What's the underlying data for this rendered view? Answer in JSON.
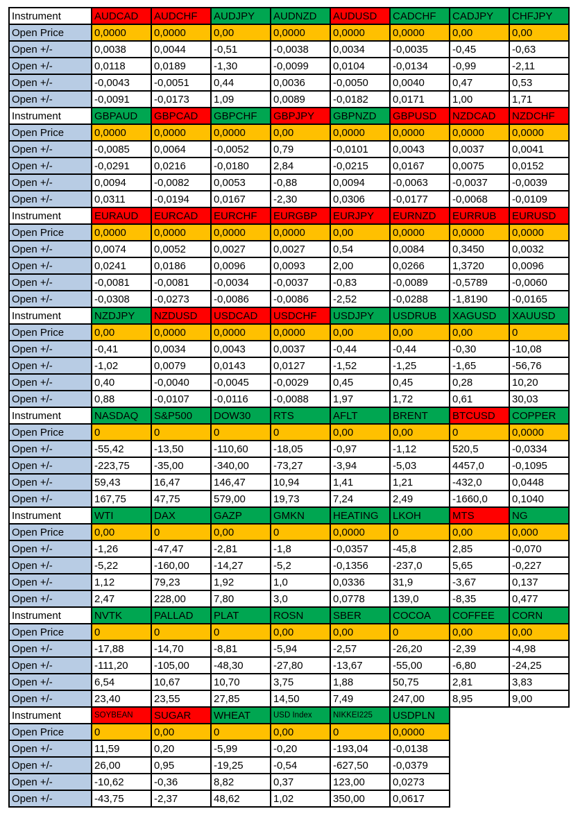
{
  "sheet": {
    "row_labels": {
      "instrument": "Instrument",
      "open_price": "Open Price",
      "open_delta": "Open +/-"
    },
    "colors": {
      "header_red": "#FF0000",
      "header_green": "#00A651",
      "price_orange": "#FFC000",
      "label_blue": "#B8CCE4",
      "grid_black": "#000000"
    },
    "blocks": [
      {
        "instruments": [
          {
            "name": "AUDCAD",
            "bg": "red"
          },
          {
            "name": "AUDCHF",
            "bg": "red"
          },
          {
            "name": "AUDJPY",
            "bg": "green"
          },
          {
            "name": "AUDNZD",
            "bg": "green"
          },
          {
            "name": "AUDUSD",
            "bg": "red"
          },
          {
            "name": "CADCHF",
            "bg": "green"
          },
          {
            "name": "CADJPY",
            "bg": "green"
          },
          {
            "name": "CHFJPY",
            "bg": "green"
          }
        ],
        "open_price": [
          "0,0000",
          "0,0000",
          "0,00",
          "0,0000",
          "0,0000",
          "0,0000",
          "0,00",
          "0,00"
        ],
        "deltas": [
          [
            "0,0038",
            "0,0044",
            "-0,51",
            "-0,0038",
            "0,0034",
            "-0,0035",
            "-0,45",
            "-0,63"
          ],
          [
            "0,0118",
            "0,0189",
            "-1,30",
            "-0,0099",
            "0,0104",
            "-0,0134",
            "-0,99",
            "-2,11"
          ],
          [
            "-0,0043",
            "-0,0051",
            "0,44",
            "0,0036",
            "-0,0050",
            "0,0040",
            "0,47",
            "0,53"
          ],
          [
            "-0,0091",
            "-0,0173",
            "1,09",
            "0,0089",
            "-0,0182",
            "0,0171",
            "1,00",
            "1,71"
          ]
        ]
      },
      {
        "instruments": [
          {
            "name": "GBPAUD",
            "bg": "green"
          },
          {
            "name": "GBPCAD",
            "bg": "red"
          },
          {
            "name": "GBPCHF",
            "bg": "green"
          },
          {
            "name": "GBPJPY",
            "bg": "red"
          },
          {
            "name": "GBPNZD",
            "bg": "green"
          },
          {
            "name": "GBPUSD",
            "bg": "red"
          },
          {
            "name": "NZDCAD",
            "bg": "red"
          },
          {
            "name": "NZDCHF",
            "bg": "red"
          }
        ],
        "open_price": [
          "0,0000",
          "0,0000",
          "0,0000",
          "0,00",
          "0,0000",
          "0,0000",
          "0,0000",
          "0,0000"
        ],
        "deltas": [
          [
            "-0,0085",
            "0,0064",
            "-0,0052",
            "0,79",
            "-0,0101",
            "0,0043",
            "0,0037",
            "0,0041"
          ],
          [
            "-0,0291",
            "0,0216",
            "-0,0180",
            "2,84",
            "-0,0215",
            "0,0167",
            "0,0075",
            "0,0152"
          ],
          [
            "0,0094",
            "-0,0082",
            "0,0053",
            "-0,88",
            "0,0094",
            "-0,0063",
            "-0,0037",
            "-0,0039"
          ],
          [
            "0,0311",
            "-0,0194",
            "0,0167",
            "-2,30",
            "0,0306",
            "-0,0177",
            "-0,0068",
            "-0,0109"
          ]
        ]
      },
      {
        "instruments": [
          {
            "name": "EURAUD",
            "bg": "red"
          },
          {
            "name": "EURCAD",
            "bg": "red"
          },
          {
            "name": "EURCHF",
            "bg": "red"
          },
          {
            "name": "EURGBP",
            "bg": "red"
          },
          {
            "name": "EURJPY",
            "bg": "red"
          },
          {
            "name": "EURNZD",
            "bg": "red"
          },
          {
            "name": "EURRUB",
            "bg": "red"
          },
          {
            "name": "EURUSD",
            "bg": "red"
          }
        ],
        "open_price": [
          "0,0000",
          "0,0000",
          "0,0000",
          "0,0000",
          "0,00",
          "0,0000",
          "0,0000",
          "0,0000"
        ],
        "deltas": [
          [
            "0,0074",
            "0,0052",
            "0,0027",
            "0,0027",
            "0,54",
            "0,0084",
            "0,3450",
            "0,0032"
          ],
          [
            "0,0241",
            "0,0186",
            "0,0096",
            "0,0093",
            "2,00",
            "0,0266",
            "1,3720",
            "0,0096"
          ],
          [
            "-0,0081",
            "-0,0081",
            "-0,0034",
            "-0,0037",
            "-0,83",
            "-0,0089",
            "-0,5789",
            "-0,0060"
          ],
          [
            "-0,0308",
            "-0,0273",
            "-0,0086",
            "-0,0086",
            "-2,52",
            "-0,0288",
            "-1,8190",
            "-0,0165"
          ]
        ]
      },
      {
        "instruments": [
          {
            "name": "NZDJPY",
            "bg": "green"
          },
          {
            "name": "NZDUSD",
            "bg": "red"
          },
          {
            "name": "USDCAD",
            "bg": "red"
          },
          {
            "name": "USDCHF",
            "bg": "red"
          },
          {
            "name": "USDJPY",
            "bg": "green"
          },
          {
            "name": "USDRUB",
            "bg": "green"
          },
          {
            "name": "XAGUSD",
            "bg": "green"
          },
          {
            "name": "XAUUSD",
            "bg": "green"
          }
        ],
        "open_price": [
          "0,00",
          "0,0000",
          "0,0000",
          "0,0000",
          "0,00",
          "0,00",
          "0,00",
          "0"
        ],
        "deltas": [
          [
            "-0,41",
            "0,0034",
            "0,0043",
            "0,0037",
            "-0,44",
            "-0,44",
            "-0,30",
            "-10,08"
          ],
          [
            "-1,02",
            "0,0079",
            "0,0143",
            "0,0127",
            "-1,52",
            "-1,25",
            "-1,65",
            "-56,76"
          ],
          [
            "0,40",
            "-0,0040",
            "-0,0045",
            "-0,0029",
            "0,45",
            "0,45",
            "0,28",
            "10,20"
          ],
          [
            "0,88",
            "-0,0107",
            "-0,0116",
            "-0,0088",
            "1,97",
            "1,72",
            "0,61",
            "30,03"
          ]
        ]
      },
      {
        "instruments": [
          {
            "name": "NASDAQ",
            "bg": "green"
          },
          {
            "name": "S&P500",
            "bg": "green"
          },
          {
            "name": "DOW30",
            "bg": "green"
          },
          {
            "name": "RTS",
            "bg": "green"
          },
          {
            "name": "AFLT",
            "bg": "green"
          },
          {
            "name": "BRENT",
            "bg": "green"
          },
          {
            "name": "BTCUSD",
            "bg": "red"
          },
          {
            "name": "COPPER",
            "bg": "green"
          }
        ],
        "open_price": [
          "0",
          "0",
          "0",
          "0",
          "0,00",
          "0,00",
          "0",
          "0,0000"
        ],
        "deltas": [
          [
            "-55,42",
            "-13,50",
            "-110,60",
            "-18,05",
            "-0,97",
            "-1,12",
            "520,5",
            "-0,0334"
          ],
          [
            "-223,75",
            "-35,00",
            "-340,00",
            "-73,27",
            "-3,94",
            "-5,03",
            "4457,0",
            "-0,1095"
          ],
          [
            "59,43",
            "16,47",
            "146,47",
            "10,94",
            "1,41",
            "1,21",
            "-432,0",
            "0,0448"
          ],
          [
            "167,75",
            "47,75",
            "579,00",
            "19,73",
            "7,24",
            "2,49",
            "-1660,0",
            "0,1040"
          ]
        ]
      },
      {
        "instruments": [
          {
            "name": "WTI",
            "bg": "green"
          },
          {
            "name": "DAX",
            "bg": "green"
          },
          {
            "name": "GAZP",
            "bg": "green"
          },
          {
            "name": "GMKN",
            "bg": "green"
          },
          {
            "name": "HEATING",
            "bg": "green"
          },
          {
            "name": "LKOH",
            "bg": "green"
          },
          {
            "name": "MTS",
            "bg": "red"
          },
          {
            "name": "NG",
            "bg": "green"
          }
        ],
        "open_price": [
          "0,00",
          "0",
          "0,00",
          "0",
          "0,0000",
          "0",
          "0,00",
          "0,000"
        ],
        "deltas": [
          [
            "-1,26",
            "-47,47",
            "-2,81",
            "-1,8",
            "-0,0357",
            "-45,8",
            "2,85",
            "-0,070"
          ],
          [
            "-5,22",
            "-160,00",
            "-14,27",
            "-5,2",
            "-0,1356",
            "-237,0",
            "5,65",
            "-0,227"
          ],
          [
            "1,12",
            "79,23",
            "1,92",
            "1,0",
            "0,0336",
            "31,9",
            "-3,67",
            "0,137"
          ],
          [
            "2,47",
            "228,00",
            "7,80",
            "3,0",
            "0,0778",
            "139,0",
            "-8,35",
            "0,477"
          ]
        ]
      },
      {
        "instruments": [
          {
            "name": "NVTK",
            "bg": "green"
          },
          {
            "name": "PALLAD",
            "bg": "green"
          },
          {
            "name": "PLAT",
            "bg": "green"
          },
          {
            "name": "ROSN",
            "bg": "green"
          },
          {
            "name": "SBER",
            "bg": "green"
          },
          {
            "name": "COCOA",
            "bg": "green"
          },
          {
            "name": "COFFEE",
            "bg": "green"
          },
          {
            "name": "CORN",
            "bg": "green"
          }
        ],
        "open_price": [
          "0",
          "0",
          "0",
          "0,00",
          "0,00",
          "0",
          "0,00",
          "0,00"
        ],
        "deltas": [
          [
            "-17,88",
            "-14,70",
            "-8,81",
            "-5,94",
            "-2,57",
            "-26,20",
            "-2,39",
            "-4,98"
          ],
          [
            "-111,20",
            "-105,00",
            "-48,30",
            "-27,80",
            "-13,67",
            "-55,00",
            "-6,80",
            "-24,25"
          ],
          [
            "6,54",
            "10,67",
            "10,70",
            "3,75",
            "1,88",
            "50,75",
            "2,81",
            "3,83"
          ],
          [
            "23,40",
            "23,55",
            "27,85",
            "14,50",
            "7,49",
            "247,00",
            "8,95",
            "9,00"
          ]
        ]
      },
      {
        "instruments": [
          {
            "name": "SOYBEAN",
            "bg": "red",
            "small": true
          },
          {
            "name": "SUGAR",
            "bg": "red"
          },
          {
            "name": "WHEAT",
            "bg": "green"
          },
          {
            "name": "USD Index",
            "bg": "green",
            "small": true
          },
          {
            "name": "NIKKEI225",
            "bg": "green",
            "small": true
          },
          {
            "name": "USDPLN",
            "bg": "green"
          }
        ],
        "open_price": [
          "0",
          "0,00",
          "0",
          "0,00",
          "0",
          "0,0000"
        ],
        "deltas": [
          [
            "11,59",
            "0,20",
            "-5,99",
            "-0,20",
            "-193,04",
            "-0,0138"
          ],
          [
            "26,00",
            "0,95",
            "-19,25",
            "-0,54",
            "-627,50",
            "-0,0379"
          ],
          [
            "-10,62",
            "-0,36",
            "8,82",
            "0,37",
            "123,00",
            "0,0273"
          ],
          [
            "-43,75",
            "-2,37",
            "48,62",
            "1,02",
            "350,00",
            "0,0617"
          ]
        ]
      }
    ]
  }
}
